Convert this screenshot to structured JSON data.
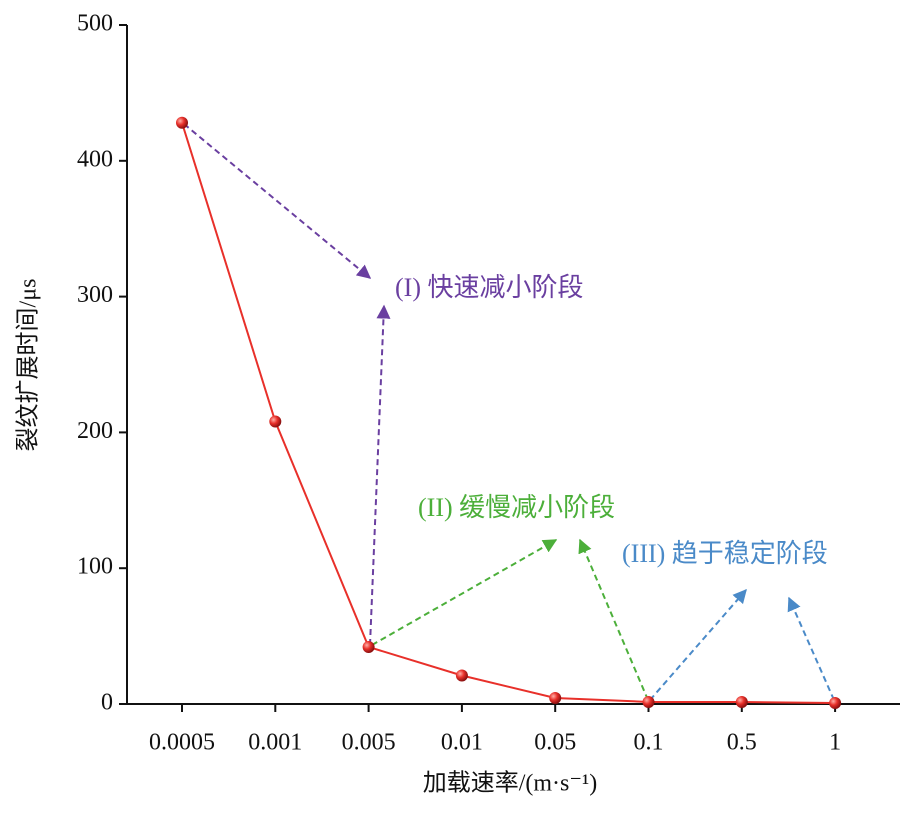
{
  "chart_data": {
    "type": "line",
    "y_label": "裂纹扩展时间/μs",
    "x_label": "加载速率/(m·s⁻¹)",
    "categories": [
      "0.0005",
      "0.001",
      "0.005",
      "0.01",
      "0.05",
      "0.1",
      "0.5",
      "1"
    ],
    "series": [
      {
        "name": "裂纹扩展时间",
        "color": "#e8302a",
        "values": [
          428,
          208,
          42,
          21,
          4.4,
          1.5,
          1.5,
          0.7
        ]
      }
    ],
    "ylim": [
      0,
      500
    ],
    "yticks": [
      0,
      100,
      200,
      300,
      400,
      500
    ],
    "annotations": [
      {
        "text": "(I) 快速减小阶段",
        "color": "#6a3fa0"
      },
      {
        "text": "(II) 缓慢减小阶段",
        "color": "#4caf3a"
      },
      {
        "text": "(III) 趋于稳定阶段",
        "color": "#4a8ac8"
      }
    ]
  }
}
